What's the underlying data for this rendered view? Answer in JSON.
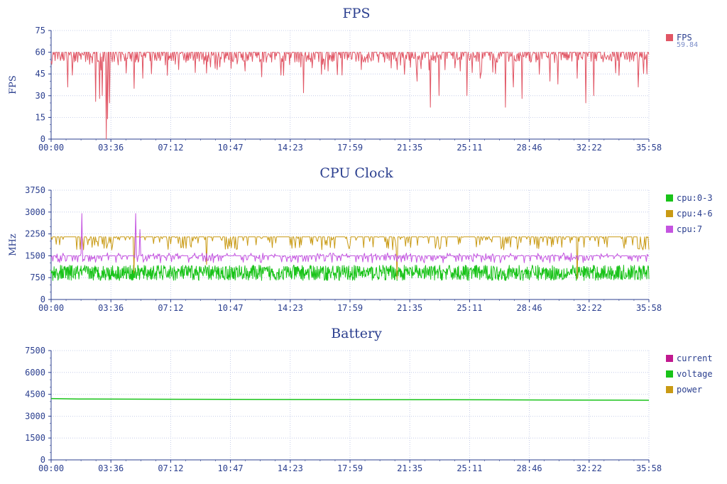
{
  "chart_data": [
    {
      "type": "line",
      "title": "FPS",
      "ylabel": "FPS",
      "ylim": [
        0,
        75
      ],
      "yticks": [
        "0",
        "15",
        "30",
        "45",
        "60",
        "75"
      ],
      "xticks": [
        "00:00",
        "03:36",
        "07:12",
        "10:47",
        "14:23",
        "17:59",
        "21:35",
        "25:11",
        "28:46",
        "32:22",
        "35:58"
      ],
      "xlim_seconds": [
        0,
        2158
      ],
      "grid": true,
      "legend_position": "right",
      "series": [
        {
          "name": "FPS",
          "color": "#e15665",
          "current": "59.84",
          "baseline": 58,
          "band": [
            53,
            60
          ],
          "dips": [
            [
              60,
              36
            ],
            [
              160,
              26
            ],
            [
              175,
              28
            ],
            [
              185,
              30
            ],
            [
              200,
              0
            ],
            [
              205,
              14
            ],
            [
              210,
              25
            ],
            [
              300,
              35
            ],
            [
              330,
              42
            ],
            [
              420,
              44
            ],
            [
              460,
              48
            ],
            [
              520,
              46
            ],
            [
              600,
              48
            ],
            [
              700,
              47
            ],
            [
              760,
              43
            ],
            [
              840,
              44
            ],
            [
              910,
              32
            ],
            [
              1000,
              47
            ],
            [
              1120,
              48
            ],
            [
              1250,
              48
            ],
            [
              1320,
              40
            ],
            [
              1370,
              22
            ],
            [
              1400,
              30
            ],
            [
              1500,
              30
            ],
            [
              1550,
              42
            ],
            [
              1640,
              22
            ],
            [
              1670,
              36
            ],
            [
              1700,
              28
            ],
            [
              1800,
              40
            ],
            [
              1830,
              38
            ],
            [
              1900,
              42
            ],
            [
              1930,
              25
            ],
            [
              1960,
              30
            ],
            [
              2050,
              44
            ],
            [
              2120,
              36
            ],
            [
              2150,
              45
            ]
          ]
        }
      ]
    },
    {
      "type": "line",
      "title": "CPU Clock",
      "ylabel": "MHz",
      "ylim": [
        0,
        3750
      ],
      "yticks": [
        "0",
        "750",
        "1500",
        "2250",
        "3000",
        "3750"
      ],
      "xticks": [
        "00:00",
        "03:36",
        "07:12",
        "10:47",
        "14:23",
        "17:59",
        "21:35",
        "25:11",
        "28:46",
        "32:22",
        "35:58"
      ],
      "xlim_seconds": [
        0,
        2158
      ],
      "grid": true,
      "legend_position": "right",
      "series": [
        {
          "name": "cpu:0-3",
          "color": "#19c319",
          "range": [
            650,
            1180
          ]
        },
        {
          "name": "cpu:4-6",
          "color": "#c99a14",
          "range": [
            1700,
            2150
          ],
          "spikes": [
            [
              45,
              2150
            ],
            [
              300,
              900
            ],
            [
              560,
              1200
            ],
            [
              1250,
              700
            ],
            [
              1490,
              2150
            ],
            [
              1900,
              700
            ]
          ]
        },
        {
          "name": "cpu:7",
          "color": "#c454e0",
          "range": [
            1250,
            1600
          ],
          "spikes": [
            [
              110,
              2950
            ],
            [
              305,
              2950
            ],
            [
              320,
              2400
            ]
          ]
        }
      ]
    },
    {
      "type": "line",
      "title": "Battery",
      "ylabel": "",
      "ylim": [
        0,
        7500
      ],
      "yticks": [
        "0",
        "1500",
        "3000",
        "4500",
        "6000",
        "7500"
      ],
      "xticks": [
        "00:00",
        "03:36",
        "07:12",
        "10:47",
        "14:23",
        "17:59",
        "21:35",
        "25:11",
        "28:46",
        "32:22",
        "35:58"
      ],
      "xlim_seconds": [
        0,
        2158
      ],
      "grid": true,
      "legend_position": "right",
      "series": [
        {
          "name": "current",
          "color": "#c1198f",
          "points": []
        },
        {
          "name": "voltage",
          "color": "#19c319",
          "points": [
            [
              0,
              4210
            ],
            [
              100,
              4180
            ],
            [
              500,
              4160
            ],
            [
              1000,
              4140
            ],
            [
              1600,
              4120
            ],
            [
              2158,
              4090
            ]
          ]
        },
        {
          "name": "power",
          "color": "#c99a14",
          "points": []
        }
      ]
    }
  ]
}
